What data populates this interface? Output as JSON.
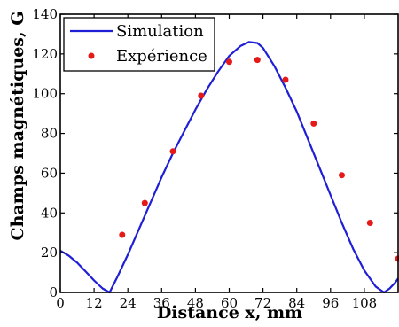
{
  "chart_data": {
    "type": "line",
    "xlabel": "Distance x, mm",
    "ylabel": "Champs magnétiques, G",
    "xlim": [
      0,
      120
    ],
    "ylim": [
      0,
      140
    ],
    "x_ticks": [
      "0",
      "12",
      "24",
      "36",
      "48",
      "60",
      "72",
      "84",
      "96",
      "108"
    ],
    "y_ticks": [
      "0",
      "20",
      "40",
      "60",
      "80",
      "100",
      "120",
      "140"
    ],
    "grid": false,
    "legend_position": "top-left",
    "series": [
      {
        "name": "Simulation",
        "kind": "line",
        "color": "#1f1fd6",
        "x": [
          0,
          3,
          6,
          9,
          12,
          15,
          17.5,
          20,
          24,
          28,
          32,
          36,
          40,
          44,
          48,
          52,
          56,
          60,
          64,
          67,
          70,
          72,
          76,
          80,
          84,
          88,
          92,
          96,
          100,
          104,
          108,
          112,
          115,
          117,
          119,
          120
        ],
        "y": [
          21,
          18.5,
          15,
          10.5,
          6,
          2,
          0,
          7,
          19,
          32,
          45,
          58,
          70,
          81,
          92,
          102,
          111,
          119,
          124,
          126,
          125.5,
          123,
          114,
          103,
          91,
          77,
          63,
          49,
          35,
          22,
          11,
          3,
          0,
          2,
          5,
          7
        ]
      },
      {
        "name": "Expérience",
        "kind": "scatter",
        "color": "#e61919",
        "x": [
          22,
          30,
          40,
          50,
          60,
          70,
          80,
          90,
          100,
          110,
          120
        ],
        "y": [
          29,
          45,
          71,
          99,
          116,
          117,
          107,
          85,
          59,
          35,
          17
        ]
      }
    ]
  }
}
